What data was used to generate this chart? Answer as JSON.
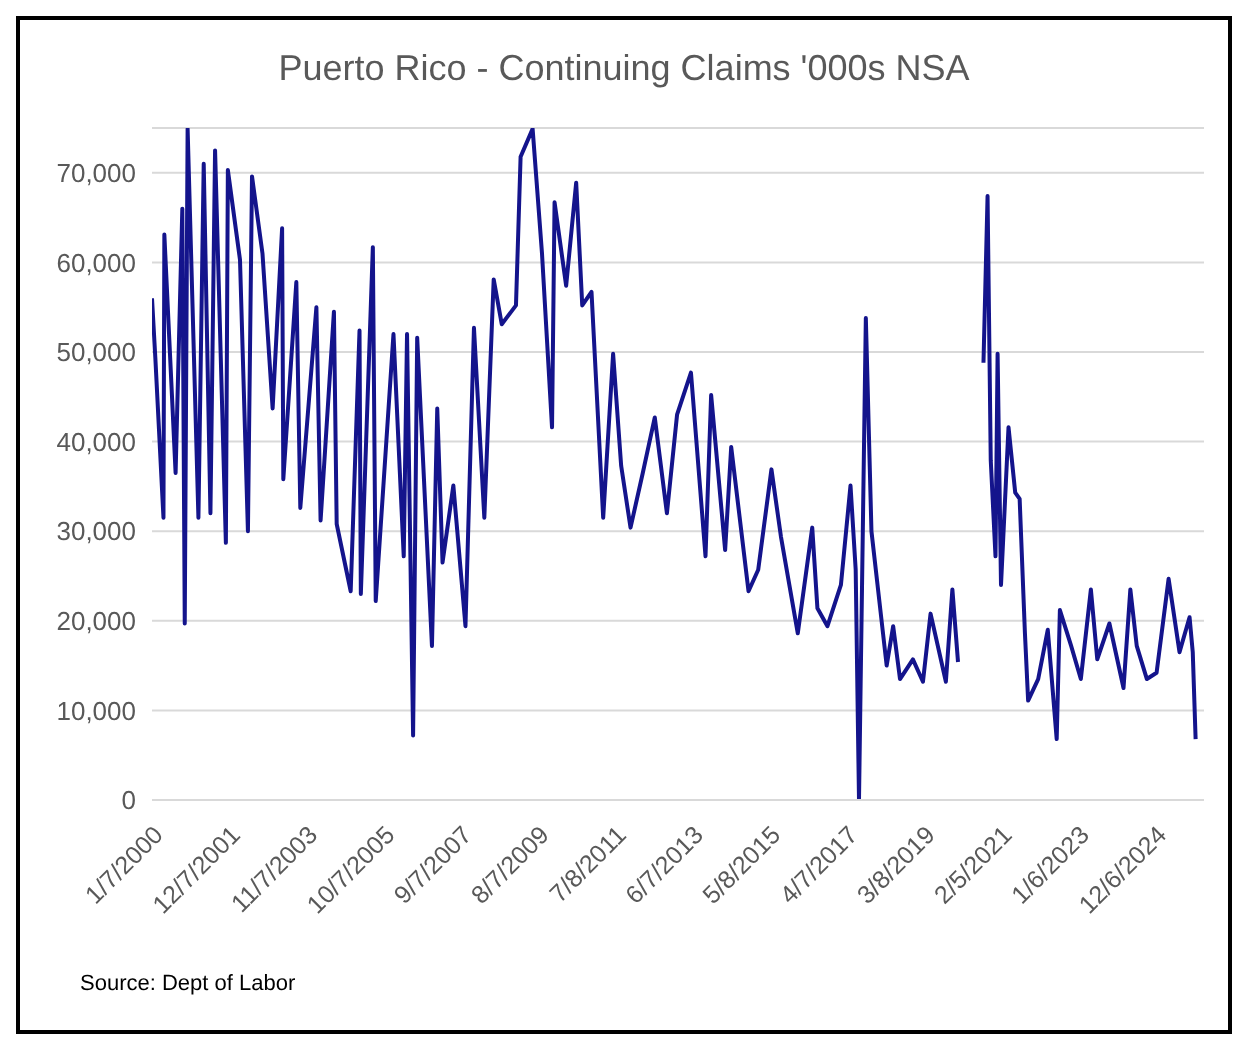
{
  "chart_data": {
    "type": "line",
    "title": "Puerto Rico - Continuing Claims '000s NSA",
    "annotations": [
      "Source: Dept of Labor"
    ],
    "x": [
      "2000-01-07",
      "2000-02-06",
      "2000-04-20",
      "2000-04-28",
      "2000-08-08",
      "2000-10-08",
      "2000-10-30",
      "2000-11-25",
      "2001-03-03",
      "2001-04-20",
      "2001-06-20",
      "2001-08-01",
      "2001-11-07",
      "2001-11-25",
      "2002-03-15",
      "2002-05-26",
      "2002-07-02",
      "2002-10-05",
      "2003-01-05",
      "2003-04-01",
      "2003-04-12",
      "2003-08-08",
      "2003-09-13",
      "2004-02-06",
      "2004-03-15",
      "2004-07-14",
      "2004-08-08",
      "2004-12-13",
      "2005-03-03",
      "2005-03-15",
      "2005-07-02",
      "2005-07-28",
      "2006-01-05",
      "2006-04-08",
      "2006-05-08",
      "2006-07-02",
      "2006-08-08",
      "2006-12-20",
      "2007-02-06",
      "2007-03-26",
      "2007-07-02",
      "2007-10-20",
      "2008-01-05",
      "2008-04-08",
      "2008-07-02",
      "2008-09-13",
      "2009-01-20",
      "2009-03-03",
      "2009-06-20",
      "2009-09-13",
      "2009-12-13",
      "2010-01-05",
      "2010-04-20",
      "2010-07-20",
      "2010-09-13",
      "2010-12-06",
      "2011-03-22",
      "2011-06-20",
      "2011-09-01",
      "2011-11-25",
      "2012-03-15",
      "2012-07-02",
      "2012-10-20",
      "2013-01-20",
      "2013-05-26",
      "2013-10-05",
      "2013-11-25",
      "2014-04-01",
      "2014-05-26",
      "2014-10-30",
      "2015-01-26",
      "2015-05-26",
      "2015-08-20",
      "2016-01-20",
      "2016-05-30",
      "2016-07-16",
      "2016-10-15",
      "2017-02-14",
      "2017-05-12",
      "2017-06-28",
      "2017-07-28",
      "2017-09-28",
      "2017-11-18",
      "2018-04-05",
      "2018-06-03",
      "2018-08-04",
      "2018-11-29",
      "2019-02-28",
      "2019-05-08",
      "2019-09-24",
      "2019-11-22",
      "2020-01-12",
      "2020-01-23",
      "2020-07-20",
      "2020-08-30",
      "2020-10-06",
      "2020-11-04",
      "2020-12-17",
      "2021-01-05",
      "2021-02-05",
      "2021-04-14",
      "2021-06-14",
      "2021-07-24",
      "2021-09-10",
      "2021-10-09",
      "2022-01-08",
      "2022-04-05",
      "2022-06-25",
      "2022-07-24",
      "2022-11-03",
      "2023-01-30",
      "2023-05-01",
      "2023-06-28",
      "2023-10-16",
      "2024-02-21",
      "2024-04-23",
      "2024-06-20",
      "2024-09-20",
      "2024-12-17",
      "2025-04-05",
      "2025-07-13",
      "2025-10-12",
      "2025-11-10",
      "2025-12-06"
    ],
    "values": [
      56000,
      49400,
      31500,
      63100,
      36500,
      66000,
      19700,
      74900,
      31500,
      71000,
      32000,
      72500,
      28700,
      70300,
      60300,
      30000,
      69600,
      61000,
      43700,
      63800,
      35800,
      57800,
      32600,
      55000,
      31200,
      54500,
      30800,
      23300,
      52400,
      23000,
      61700,
      22200,
      52000,
      27200,
      52000,
      7200,
      51600,
      17200,
      43700,
      26500,
      35100,
      19400,
      52700,
      31500,
      58100,
      53100,
      55200,
      71800,
      74900,
      61000,
      41600,
      66700,
      57400,
      68900,
      55200,
      56700,
      31500,
      49800,
      37300,
      30400,
      36500,
      42700,
      32000,
      43000,
      47700,
      27200,
      45200,
      27900,
      39400,
      23300,
      25700,
      36900,
      29400,
      18600,
      30400,
      21400,
      19400,
      24000,
      35100,
      25700,
      0,
      53800,
      30000,
      15000,
      19400,
      13500,
      15700,
      13200,
      20800,
      13200,
      23500,
      15400,
      null,
      null,
      48800,
      67400,
      37900,
      27200,
      49800,
      24000,
      41600,
      34300,
      33600,
      18600,
      11100,
      13500,
      19000,
      6800,
      21200,
      17200,
      13500,
      23500,
      15700,
      19700,
      12500,
      23500,
      17200,
      13500,
      14200,
      24700,
      16500,
      20400,
      16500,
      6800
    ],
    "color": "#14148c",
    "xlim": [
      "2000-01-07",
      "2026-02-20"
    ],
    "xticks": [
      {
        "value": "2000-01-07",
        "label": "1/7/2000"
      },
      {
        "value": "2001-12-07",
        "label": "12/7/2001"
      },
      {
        "value": "2003-11-07",
        "label": "11/7/2003"
      },
      {
        "value": "2005-10-07",
        "label": "10/7/2005"
      },
      {
        "value": "2007-09-07",
        "label": "9/7/2007"
      },
      {
        "value": "2009-08-07",
        "label": "8/7/2009"
      },
      {
        "value": "2011-07-08",
        "label": "7/8/2011"
      },
      {
        "value": "2013-06-07",
        "label": "6/7/2013"
      },
      {
        "value": "2015-05-08",
        "label": "5/8/2015"
      },
      {
        "value": "2017-04-07",
        "label": "4/7/2017"
      },
      {
        "value": "2019-03-08",
        "label": "3/8/2019"
      },
      {
        "value": "2021-02-05",
        "label": "2/5/2021"
      },
      {
        "value": "2023-01-06",
        "label": "1/6/2023"
      },
      {
        "value": "2024-12-06",
        "label": "12/6/2024"
      }
    ],
    "ylim": [
      0,
      75000
    ],
    "yticks": [
      0,
      {
        "value": 10000,
        "label": "10,000"
      },
      {
        "value": 20000,
        "label": "20,000"
      },
      {
        "value": 30000,
        "label": "30,000"
      },
      {
        "value": 40000,
        "label": "40,000"
      },
      {
        "value": 50000,
        "label": "50,000"
      },
      {
        "value": 60000,
        "label": "60,000"
      },
      {
        "value": 70000,
        "label": "70,000"
      }
    ],
    "grid": "y",
    "marker": "none",
    "line_style": "solid"
  }
}
